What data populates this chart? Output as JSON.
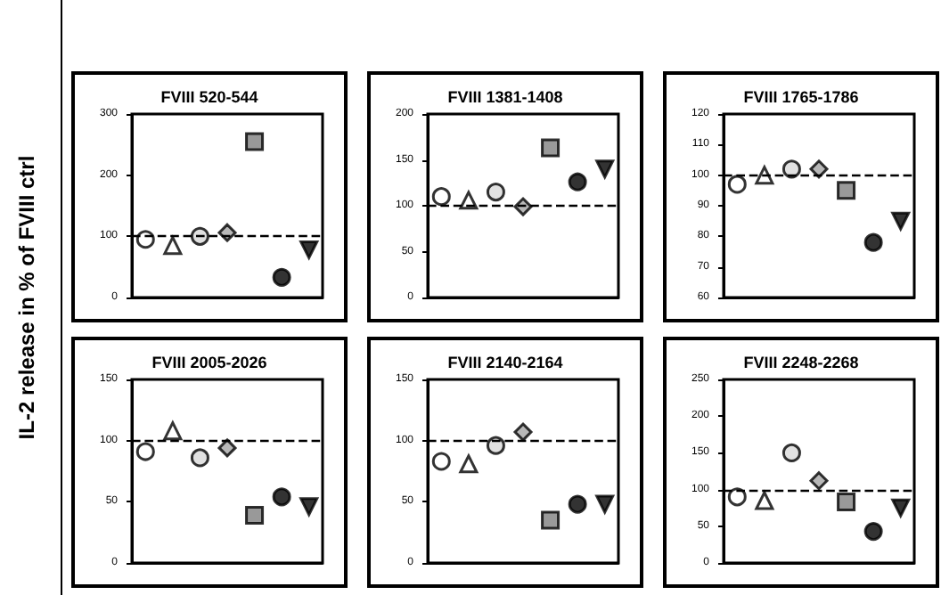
{
  "chart_data": [
    {
      "type": "scatter",
      "title": "FVIII 520-544",
      "ylabel": "IL-2 release in % of  FVIII ctrl",
      "categories": [
        null,
        null,
        null,
        null,
        null,
        null,
        null
      ],
      "ylim": [
        0,
        300
      ],
      "yticks": [
        0,
        100,
        200,
        300
      ],
      "grid": false,
      "tick_labels": "y",
      "ref_lines": [
        {
          "axis": "y",
          "value": 100,
          "line_style": "dashed",
          "color": "#000000"
        }
      ],
      "series": [
        {
          "marker": "circle",
          "color": "#ffffff",
          "values": [
            95,
            null,
            null,
            null,
            null,
            null,
            null
          ]
        },
        {
          "marker": "triangle",
          "color": "#ffffff",
          "values": [
            null,
            85,
            null,
            null,
            null,
            null,
            null
          ]
        },
        {
          "marker": "circle",
          "color": "#d9d9d9",
          "values": [
            null,
            null,
            100,
            null,
            null,
            null,
            null
          ]
        },
        {
          "marker": "diamond",
          "color": "#a6a6a6",
          "values": [
            null,
            null,
            null,
            106,
            null,
            null,
            null
          ]
        },
        {
          "marker": "square",
          "color": "#7f7f7f",
          "values": [
            null,
            null,
            null,
            null,
            255,
            null,
            null
          ]
        },
        {
          "marker": "circle",
          "color": "#000000",
          "values": [
            null,
            null,
            null,
            null,
            null,
            33,
            null
          ]
        },
        {
          "marker": "triangle-down",
          "color": "#000000",
          "values": [
            null,
            null,
            null,
            null,
            null,
            null,
            78
          ]
        }
      ]
    },
    {
      "type": "scatter",
      "title": "FVIII 1381-1408",
      "categories": [
        null,
        null,
        null,
        null,
        null,
        null,
        null
      ],
      "ylim": [
        0,
        200
      ],
      "yticks": [
        0,
        50,
        100,
        150,
        200
      ],
      "grid": false,
      "tick_labels": "y",
      "ref_lines": [
        {
          "axis": "y",
          "value": 100,
          "line_style": "dashed",
          "color": "#000000"
        }
      ],
      "series": [
        {
          "marker": "circle",
          "color": "#ffffff",
          "values": [
            110,
            null,
            null,
            null,
            null,
            null,
            null
          ]
        },
        {
          "marker": "triangle",
          "color": "#ffffff",
          "values": [
            null,
            106,
            null,
            null,
            null,
            null,
            null
          ]
        },
        {
          "marker": "circle",
          "color": "#d9d9d9",
          "values": [
            null,
            null,
            115,
            null,
            null,
            null,
            null
          ]
        },
        {
          "marker": "diamond",
          "color": "#a6a6a6",
          "values": [
            null,
            null,
            null,
            99,
            null,
            null,
            null
          ]
        },
        {
          "marker": "square",
          "color": "#7f7f7f",
          "values": [
            null,
            null,
            null,
            null,
            163,
            null,
            null
          ]
        },
        {
          "marker": "circle",
          "color": "#000000",
          "values": [
            null,
            null,
            null,
            null,
            null,
            126,
            null
          ]
        },
        {
          "marker": "triangle-down",
          "color": "#000000",
          "values": [
            null,
            null,
            null,
            null,
            null,
            null,
            140
          ]
        }
      ]
    },
    {
      "type": "scatter",
      "title": "FVIII 1765-1786",
      "categories": [
        null,
        null,
        null,
        null,
        null,
        null,
        null
      ],
      "ylim": [
        60,
        120
      ],
      "yticks": [
        60,
        70,
        80,
        90,
        100,
        110,
        120
      ],
      "grid": false,
      "tick_labels": "y",
      "ref_lines": [
        {
          "axis": "y",
          "value": 100,
          "line_style": "dashed",
          "color": "#000000"
        }
      ],
      "series": [
        {
          "marker": "circle",
          "color": "#ffffff",
          "values": [
            97,
            null,
            null,
            null,
            null,
            null,
            null
          ]
        },
        {
          "marker": "triangle",
          "color": "#ffffff",
          "values": [
            null,
            100,
            null,
            null,
            null,
            null,
            null
          ]
        },
        {
          "marker": "circle",
          "color": "#d9d9d9",
          "values": [
            null,
            null,
            102,
            null,
            null,
            null,
            null
          ]
        },
        {
          "marker": "diamond",
          "color": "#a6a6a6",
          "values": [
            null,
            null,
            null,
            102,
            null,
            null,
            null
          ]
        },
        {
          "marker": "square",
          "color": "#7f7f7f",
          "values": [
            null,
            null,
            null,
            null,
            95,
            null,
            null
          ]
        },
        {
          "marker": "circle",
          "color": "#000000",
          "values": [
            null,
            null,
            null,
            null,
            null,
            78,
            null
          ]
        },
        {
          "marker": "triangle-down",
          "color": "#000000",
          "values": [
            null,
            null,
            null,
            null,
            null,
            null,
            85
          ]
        }
      ]
    },
    {
      "type": "scatter",
      "title": "FVIII 2005-2026",
      "categories": [
        null,
        null,
        null,
        null,
        null,
        null,
        null
      ],
      "ylim": [
        0,
        150
      ],
      "yticks": [
        0,
        50,
        100,
        150
      ],
      "grid": false,
      "tick_labels": "y",
      "ref_lines": [
        {
          "axis": "y",
          "value": 100,
          "line_style": "dashed",
          "color": "#000000"
        }
      ],
      "series": [
        {
          "marker": "circle",
          "color": "#ffffff",
          "values": [
            91,
            null,
            null,
            null,
            null,
            null,
            null
          ]
        },
        {
          "marker": "triangle",
          "color": "#ffffff",
          "values": [
            null,
            108,
            null,
            null,
            null,
            null,
            null
          ]
        },
        {
          "marker": "circle",
          "color": "#d9d9d9",
          "values": [
            null,
            null,
            86,
            null,
            null,
            null,
            null
          ]
        },
        {
          "marker": "diamond",
          "color": "#a6a6a6",
          "values": [
            null,
            null,
            null,
            94,
            null,
            null,
            null
          ]
        },
        {
          "marker": "square",
          "color": "#7f7f7f",
          "values": [
            null,
            null,
            null,
            null,
            39,
            null,
            null
          ]
        },
        {
          "marker": "circle",
          "color": "#000000",
          "values": [
            null,
            null,
            null,
            null,
            null,
            54,
            null
          ]
        },
        {
          "marker": "triangle-down",
          "color": "#000000",
          "values": [
            null,
            null,
            null,
            null,
            null,
            null,
            46
          ]
        }
      ]
    },
    {
      "type": "scatter",
      "title": "FVIII 2140-2164",
      "categories": [
        null,
        null,
        null,
        null,
        null,
        null,
        null
      ],
      "ylim": [
        0,
        150
      ],
      "yticks": [
        0,
        50,
        100,
        150
      ],
      "grid": false,
      "tick_labels": "y",
      "ref_lines": [
        {
          "axis": "y",
          "value": 100,
          "line_style": "dashed",
          "color": "#000000"
        }
      ],
      "series": [
        {
          "marker": "circle",
          "color": "#ffffff",
          "values": [
            83,
            null,
            null,
            null,
            null,
            null,
            null
          ]
        },
        {
          "marker": "triangle",
          "color": "#ffffff",
          "values": [
            null,
            81,
            null,
            null,
            null,
            null,
            null
          ]
        },
        {
          "marker": "circle",
          "color": "#d9d9d9",
          "values": [
            null,
            null,
            96,
            null,
            null,
            null,
            null
          ]
        },
        {
          "marker": "diamond",
          "color": "#a6a6a6",
          "values": [
            null,
            null,
            null,
            107,
            null,
            null,
            null
          ]
        },
        {
          "marker": "square",
          "color": "#7f7f7f",
          "values": [
            null,
            null,
            null,
            null,
            35,
            null,
            null
          ]
        },
        {
          "marker": "circle",
          "color": "#000000",
          "values": [
            null,
            null,
            null,
            null,
            null,
            48,
            null
          ]
        },
        {
          "marker": "triangle-down",
          "color": "#000000",
          "values": [
            null,
            null,
            null,
            null,
            null,
            null,
            48
          ]
        }
      ]
    },
    {
      "type": "scatter",
      "title": "FVIII 2248-2268",
      "categories": [
        null,
        null,
        null,
        null,
        null,
        null,
        null
      ],
      "ylim": [
        0,
        250
      ],
      "yticks": [
        0,
        50,
        100,
        150,
        200,
        250
      ],
      "grid": false,
      "tick_labels": "y",
      "ref_lines": [
        {
          "axis": "y",
          "value": 100,
          "line_style": "dashed",
          "color": "#000000"
        }
      ],
      "series": [
        {
          "marker": "circle",
          "color": "#ffffff",
          "values": [
            90,
            null,
            null,
            null,
            null,
            null,
            null
          ]
        },
        {
          "marker": "triangle",
          "color": "#ffffff",
          "values": [
            null,
            85,
            null,
            null,
            null,
            null,
            null
          ]
        },
        {
          "marker": "circle",
          "color": "#d9d9d9",
          "values": [
            null,
            null,
            150,
            null,
            null,
            null,
            null
          ]
        },
        {
          "marker": "diamond",
          "color": "#a6a6a6",
          "values": [
            null,
            null,
            null,
            112,
            null,
            null,
            null
          ]
        },
        {
          "marker": "square",
          "color": "#7f7f7f",
          "values": [
            null,
            null,
            null,
            null,
            83,
            null,
            null
          ]
        },
        {
          "marker": "circle",
          "color": "#000000",
          "values": [
            null,
            null,
            null,
            null,
            null,
            43,
            null
          ]
        },
        {
          "marker": "triangle-down",
          "color": "#000000",
          "values": [
            null,
            null,
            null,
            null,
            null,
            null,
            75
          ]
        }
      ]
    }
  ]
}
